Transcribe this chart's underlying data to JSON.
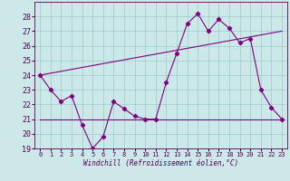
{
  "x": [
    0,
    1,
    2,
    3,
    4,
    5,
    6,
    7,
    8,
    9,
    10,
    11,
    12,
    13,
    14,
    15,
    16,
    17,
    18,
    19,
    20,
    21,
    22,
    23
  ],
  "line1": [
    24.0,
    23.0,
    22.2,
    22.6,
    20.6,
    19.0,
    19.8,
    22.2,
    21.7,
    21.2,
    21.0,
    21.0,
    23.5,
    25.5,
    27.5,
    28.2,
    27.0,
    27.8,
    27.2,
    26.2,
    26.5,
    23.0,
    21.8,
    21.0
  ],
  "trend1_x": [
    0,
    23
  ],
  "trend1_y": [
    24.0,
    27.0
  ],
  "trend2_x": [
    0,
    23
  ],
  "trend2_y": [
    21.0,
    21.0
  ],
  "background_color": "#cce8e8",
  "line_color": "#800080",
  "grid_color": "#99cccc",
  "xlabel": "Windchill (Refroidissement éolien,°C)",
  "ylim": [
    19,
    29
  ],
  "xlim": [
    -0.5,
    23.5
  ],
  "yticks": [
    19,
    20,
    21,
    22,
    23,
    24,
    25,
    26,
    27,
    28
  ],
  "xticks": [
    0,
    1,
    2,
    3,
    4,
    5,
    6,
    7,
    8,
    9,
    10,
    11,
    12,
    13,
    14,
    15,
    16,
    17,
    18,
    19,
    20,
    21,
    22,
    23
  ],
  "tick_color": "#550055",
  "xlabel_fontsize": 5.5,
  "ytick_fontsize": 6,
  "xtick_fontsize": 5
}
